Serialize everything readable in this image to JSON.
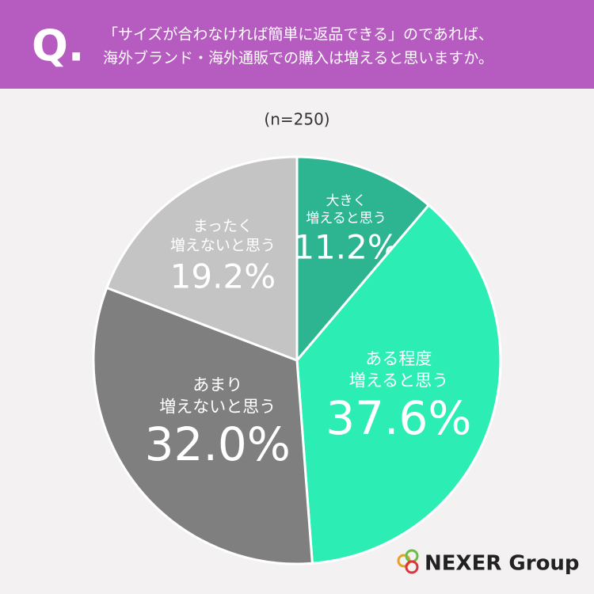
{
  "header": {
    "mark": "Q.",
    "question": [
      "「サイズが合わなければ簡単に返品できる」のであれば、",
      "海外ブランド・海外通販での購入は増えると思いますか。"
    ]
  },
  "chart_data": {
    "type": "pie",
    "subtitle": "(n=250)",
    "categories": [
      [
        "大きく",
        "増えると思う"
      ],
      [
        "ある程度",
        "増えると思う"
      ],
      [
        "あまり",
        "増えないと思う"
      ],
      [
        "まったく",
        "増えないと思う"
      ]
    ],
    "values": [
      11.2,
      37.6,
      32.0,
      19.2
    ],
    "value_labels": [
      "11.2%",
      "37.6%",
      "32.0%",
      "19.2%"
    ],
    "colors": [
      "#2db592",
      "#2ceeb4",
      "#7f7f7f",
      "#c4c4c4"
    ]
  },
  "logo": "NEXER Group"
}
